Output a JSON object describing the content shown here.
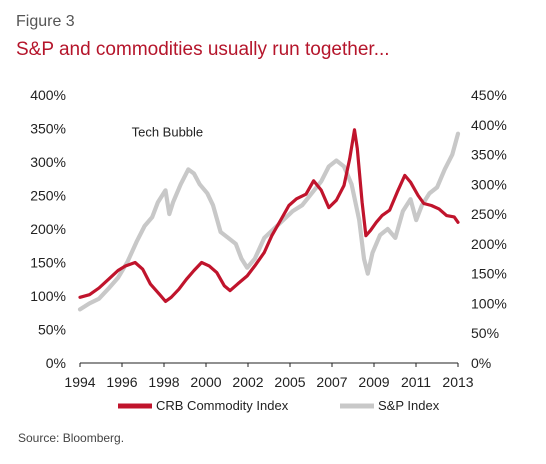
{
  "figure_label": "Figure 3",
  "title": "S&P and commodities usually run together...",
  "source": "Source: Bloomberg.",
  "chart_data": {
    "type": "line",
    "x_ticks": [
      "1994",
      "1996",
      "1998",
      "2000",
      "2002",
      "2005",
      "2007",
      "2009",
      "2011",
      "2013"
    ],
    "y_left_ticks": [
      "0%",
      "50%",
      "100%",
      "150%",
      "200%",
      "250%",
      "300%",
      "350%",
      "400%"
    ],
    "y_right_ticks": [
      "0%",
      "50%",
      "100%",
      "150%",
      "200%",
      "250%",
      "300%",
      "350%",
      "400%",
      "450%"
    ],
    "y_left_range": [
      0,
      400
    ],
    "y_right_range": [
      0,
      450
    ],
    "x_range": [
      1994.0,
      2013.9
    ],
    "annotation": {
      "text": "Tech Bubble",
      "x": 1998.6,
      "y_right": 350
    },
    "legend_position": "bottom",
    "series": [
      {
        "name": "CRB Commodity Index",
        "color": "#c0142c",
        "axis": "left",
        "points": [
          [
            1994.0,
            98
          ],
          [
            1994.5,
            102
          ],
          [
            1995.0,
            112
          ],
          [
            1995.5,
            125
          ],
          [
            1996.0,
            138
          ],
          [
            1996.4,
            145
          ],
          [
            1996.9,
            150
          ],
          [
            1997.3,
            140
          ],
          [
            1997.7,
            118
          ],
          [
            1998.2,
            102
          ],
          [
            1998.5,
            92
          ],
          [
            1998.8,
            98
          ],
          [
            1999.2,
            110
          ],
          [
            1999.6,
            125
          ],
          [
            2000.0,
            138
          ],
          [
            2000.4,
            150
          ],
          [
            2000.8,
            145
          ],
          [
            2001.2,
            135
          ],
          [
            2001.6,
            115
          ],
          [
            2001.9,
            108
          ],
          [
            2002.3,
            118
          ],
          [
            2002.8,
            130
          ],
          [
            2003.2,
            145
          ],
          [
            2003.7,
            165
          ],
          [
            2004.1,
            190
          ],
          [
            2004.6,
            215
          ],
          [
            2005.0,
            235
          ],
          [
            2005.4,
            245
          ],
          [
            2005.9,
            252
          ],
          [
            2006.3,
            272
          ],
          [
            2006.7,
            258
          ],
          [
            2007.1,
            232
          ],
          [
            2007.5,
            243
          ],
          [
            2007.9,
            265
          ],
          [
            2008.2,
            305
          ],
          [
            2008.45,
            348
          ],
          [
            2008.6,
            320
          ],
          [
            2008.85,
            240
          ],
          [
            2009.05,
            190
          ],
          [
            2009.3,
            198
          ],
          [
            2009.6,
            210
          ],
          [
            2009.9,
            220
          ],
          [
            2010.3,
            228
          ],
          [
            2010.7,
            255
          ],
          [
            2011.1,
            280
          ],
          [
            2011.4,
            270
          ],
          [
            2011.8,
            250
          ],
          [
            2012.1,
            238
          ],
          [
            2012.5,
            235
          ],
          [
            2012.9,
            230
          ],
          [
            2013.3,
            220
          ],
          [
            2013.7,
            218
          ],
          [
            2013.9,
            210
          ]
        ]
      },
      {
        "name": "S&P Index",
        "color": "#c8c8c8",
        "axis": "right",
        "points": [
          [
            1994.0,
            90
          ],
          [
            1994.5,
            100
          ],
          [
            1995.0,
            108
          ],
          [
            1995.5,
            125
          ],
          [
            1996.0,
            143
          ],
          [
            1996.5,
            170
          ],
          [
            1997.0,
            205
          ],
          [
            1997.4,
            230
          ],
          [
            1997.8,
            245
          ],
          [
            1998.1,
            270
          ],
          [
            1998.5,
            290
          ],
          [
            1998.7,
            250
          ],
          [
            1998.9,
            270
          ],
          [
            1999.3,
            300
          ],
          [
            1999.7,
            325
          ],
          [
            2000.0,
            318
          ],
          [
            2000.3,
            300
          ],
          [
            2000.7,
            285
          ],
          [
            2001.0,
            265
          ],
          [
            2001.4,
            220
          ],
          [
            2001.8,
            210
          ],
          [
            2002.2,
            200
          ],
          [
            2002.5,
            175
          ],
          [
            2002.8,
            160
          ],
          [
            2003.2,
            175
          ],
          [
            2003.7,
            210
          ],
          [
            2004.2,
            225
          ],
          [
            2004.7,
            240
          ],
          [
            2005.2,
            255
          ],
          [
            2005.7,
            265
          ],
          [
            2006.2,
            285
          ],
          [
            2006.7,
            305
          ],
          [
            2007.1,
            330
          ],
          [
            2007.5,
            340
          ],
          [
            2007.9,
            330
          ],
          [
            2008.3,
            300
          ],
          [
            2008.7,
            240
          ],
          [
            2008.95,
            175
          ],
          [
            2009.15,
            150
          ],
          [
            2009.4,
            185
          ],
          [
            2009.8,
            215
          ],
          [
            2010.2,
            225
          ],
          [
            2010.6,
            210
          ],
          [
            2011.0,
            255
          ],
          [
            2011.4,
            275
          ],
          [
            2011.7,
            240
          ],
          [
            2012.0,
            265
          ],
          [
            2012.4,
            285
          ],
          [
            2012.8,
            295
          ],
          [
            2013.2,
            325
          ],
          [
            2013.6,
            350
          ],
          [
            2013.9,
            385
          ]
        ]
      }
    ]
  }
}
